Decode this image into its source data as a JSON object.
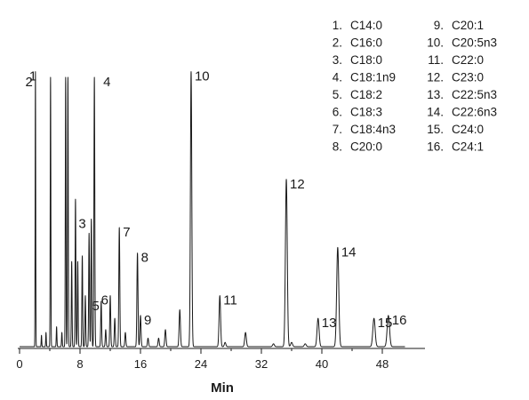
{
  "chart_data": {
    "type": "line",
    "title": "",
    "xlabel": "Min",
    "ylabel": "",
    "xlim": [
      0,
      53
    ],
    "ylim": [
      0,
      1.0
    ],
    "grid": false,
    "legend_position": "top-right",
    "x_ticks": [
      {
        "value": 0,
        "label": "0"
      },
      {
        "value": 8,
        "label": "8"
      },
      {
        "value": 16,
        "label": "16"
      },
      {
        "value": 24,
        "label": "24"
      },
      {
        "value": 32,
        "label": "32"
      },
      {
        "value": 40,
        "label": "40"
      },
      {
        "value": 48,
        "label": "48"
      }
    ],
    "peaks": [
      {
        "label": "1",
        "rt": 2.1,
        "height": 0.97
      },
      {
        "label": "2",
        "rt": 4.1,
        "height": 0.95
      },
      {
        "label": "3",
        "rt": 9.5,
        "height": 0.45
      },
      {
        "label": "4",
        "rt": 9.9,
        "height": 0.95
      },
      {
        "label": "5",
        "rt": 10.8,
        "height": 0.16
      },
      {
        "label": "6",
        "rt": 12.0,
        "height": 0.18
      },
      {
        "label": "7",
        "rt": 13.2,
        "height": 0.42
      },
      {
        "label": "8",
        "rt": 15.6,
        "height": 0.33
      },
      {
        "label": "9",
        "rt": 16.0,
        "height": 0.11
      },
      {
        "label": "10",
        "rt": 22.7,
        "height": 0.97
      },
      {
        "label": "11",
        "rt": 26.5,
        "height": 0.18
      },
      {
        "label": "12",
        "rt": 35.3,
        "height": 0.59
      },
      {
        "label": "13",
        "rt": 39.5,
        "height": 0.1
      },
      {
        "label": "14",
        "rt": 42.1,
        "height": 0.35
      },
      {
        "label": "15",
        "rt": 46.9,
        "height": 0.1
      },
      {
        "label": "16",
        "rt": 48.8,
        "height": 0.11
      }
    ],
    "unlabeled_peaks": [
      {
        "rt": 2.9,
        "height": 0.04
      },
      {
        "rt": 3.5,
        "height": 0.05
      },
      {
        "rt": 4.9,
        "height": 0.07
      },
      {
        "rt": 5.6,
        "height": 0.05
      },
      {
        "rt": 6.1,
        "height": 0.95
      },
      {
        "rt": 6.4,
        "height": 0.95
      },
      {
        "rt": 6.9,
        "height": 0.3
      },
      {
        "rt": 7.4,
        "height": 0.52
      },
      {
        "rt": 7.7,
        "height": 0.3
      },
      {
        "rt": 8.3,
        "height": 0.32
      },
      {
        "rt": 8.7,
        "height": 0.18
      },
      {
        "rt": 9.2,
        "height": 0.4
      },
      {
        "rt": 11.4,
        "height": 0.06
      },
      {
        "rt": 12.6,
        "height": 0.1
      },
      {
        "rt": 14.0,
        "height": 0.05
      },
      {
        "rt": 17.0,
        "height": 0.03
      },
      {
        "rt": 18.4,
        "height": 0.03
      },
      {
        "rt": 19.3,
        "height": 0.06
      },
      {
        "rt": 21.2,
        "height": 0.13
      },
      {
        "rt": 27.2,
        "height": 0.015
      },
      {
        "rt": 29.9,
        "height": 0.05
      },
      {
        "rt": 33.6,
        "height": 0.01
      },
      {
        "rt": 36.0,
        "height": 0.015
      },
      {
        "rt": 37.8,
        "height": 0.01
      }
    ],
    "legend": [
      {
        "num": "1.",
        "name": "C14:0"
      },
      {
        "num": "2.",
        "name": "C16:0"
      },
      {
        "num": "3.",
        "name": "C18:0"
      },
      {
        "num": "4.",
        "name": "C18:1n9"
      },
      {
        "num": "5.",
        "name": "C18:2"
      },
      {
        "num": "6.",
        "name": "C18:3"
      },
      {
        "num": "7.",
        "name": "C18:4n3"
      },
      {
        "num": "8.",
        "name": "C20:0"
      },
      {
        "num": "9.",
        "name": "C20:1"
      },
      {
        "num": "10.",
        "name": "C20:5n3"
      },
      {
        "num": "11.",
        "name": "C22:0"
      },
      {
        "num": "12.",
        "name": "C23:0"
      },
      {
        "num": "13.",
        "name": "C22:5n3"
      },
      {
        "num": "14.",
        "name": "C22:6n3"
      },
      {
        "num": "15.",
        "name": "C24:0"
      },
      {
        "num": "16.",
        "name": "C24:1"
      }
    ],
    "colors": {
      "trace": "#1a1a1a",
      "axis": "#1a1a1a",
      "text": "#1a1a1a"
    }
  }
}
